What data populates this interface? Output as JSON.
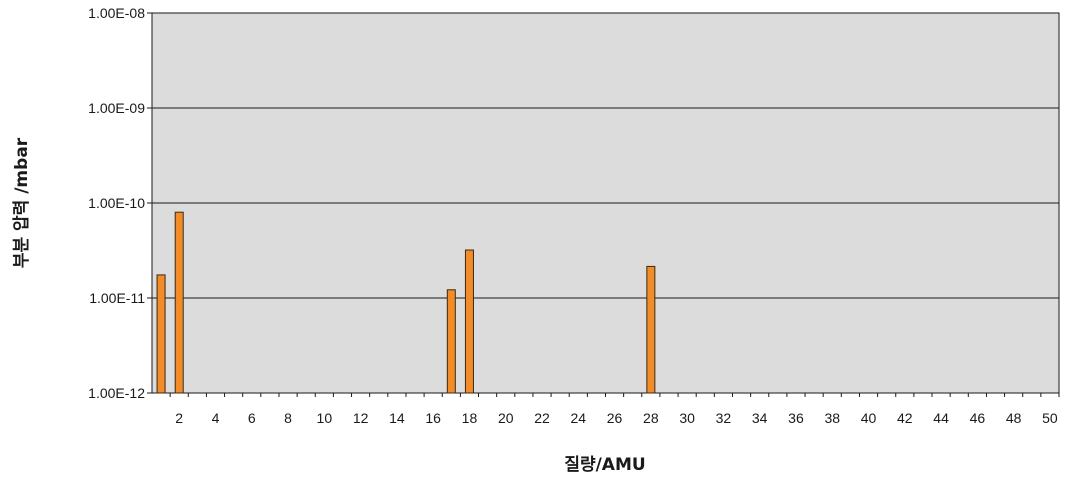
{
  "chart_data": {
    "type": "bar",
    "xlabel": "질량/AMU",
    "ylabel": "부분 압력 /mbar",
    "y_scale": "log",
    "ylim": [
      1e-12,
      1e-08
    ],
    "y_ticks": [
      1e-12,
      1e-11,
      1e-10,
      1e-09,
      1e-08
    ],
    "y_tick_labels": [
      "1.00E-12",
      "1.00E-11",
      "1.00E-10",
      "1.00E-09",
      "1.00E-08"
    ],
    "x_range": [
      1,
      50
    ],
    "x_tick_labels": [
      "2",
      "4",
      "6",
      "8",
      "10",
      "12",
      "14",
      "16",
      "18",
      "20",
      "22",
      "24",
      "26",
      "28",
      "30",
      "32",
      "34",
      "36",
      "38",
      "40",
      "42",
      "44",
      "46",
      "48",
      "50"
    ],
    "grid": "horizontal",
    "plot_background": "#dcdcdc",
    "bar_color": "#f28c28",
    "bar_edge_color": "#3a2a10",
    "x": [
      1,
      2,
      17,
      18,
      28
    ],
    "values": [
      1.75e-11,
      8e-11,
      1.22e-11,
      3.2e-11,
      2.15e-11
    ]
  }
}
